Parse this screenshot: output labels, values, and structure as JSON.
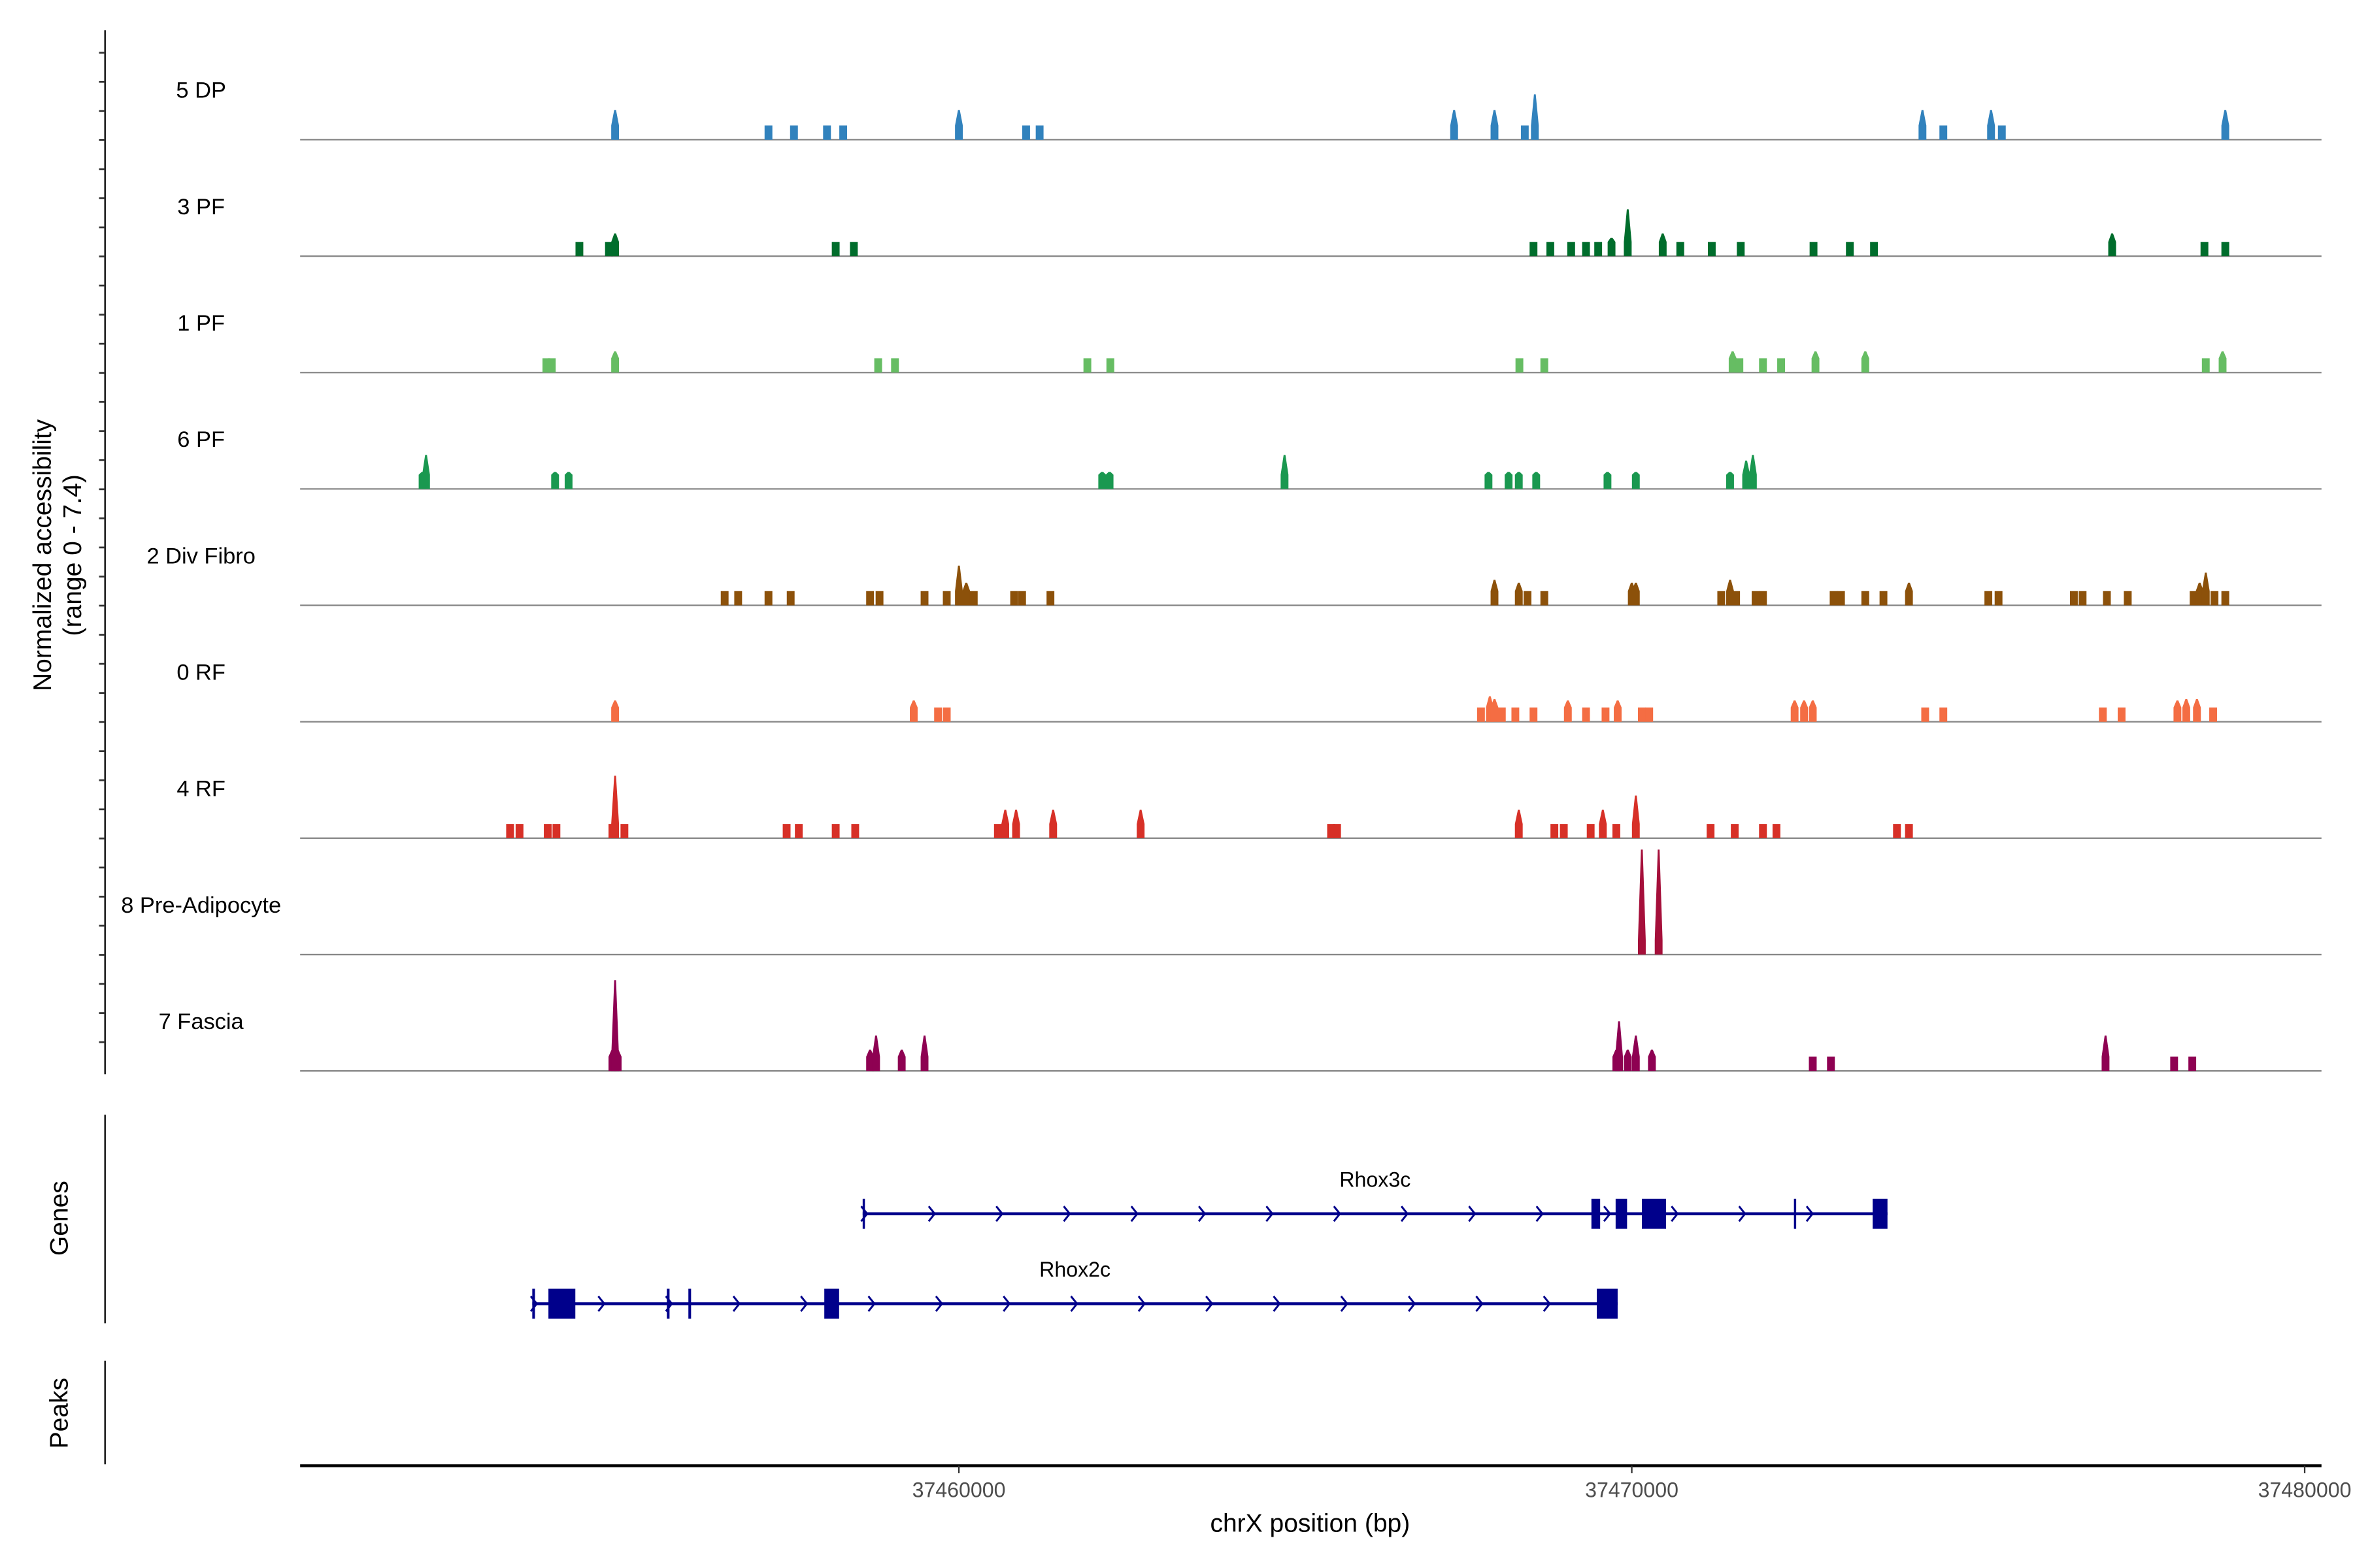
{
  "chart_data": {
    "type": "area",
    "title": "",
    "xlabel": "chrX position (bp)",
    "ylabel": "Normalized accessibility",
    "ylabel_sub": "(range 0 - 7.4)",
    "ylim": [
      0,
      7.4
    ],
    "xlim": [
      37450210,
      37480250
    ],
    "xticks": [
      37460000,
      37470000,
      37480000
    ],
    "xtick_labels": [
      "37460000",
      "37470000",
      "37480000"
    ],
    "grid": false,
    "tracks": [
      {
        "name": "5 DP",
        "color": "#3182bd",
        "peaks": [
          [
            37454890,
            2.1
          ],
          [
            37457170,
            1.0
          ],
          [
            37457550,
            1.0
          ],
          [
            37458040,
            1.0
          ],
          [
            37458280,
            1.0
          ],
          [
            37460000,
            2.1
          ],
          [
            37461000,
            1.0
          ],
          [
            37461200,
            1.0
          ],
          [
            37467360,
            2.1
          ],
          [
            37467960,
            2.1
          ],
          [
            37468410,
            1.0
          ],
          [
            37468560,
            3.2
          ],
          [
            37474320,
            2.1
          ],
          [
            37474630,
            1.0
          ],
          [
            37475340,
            2.1
          ],
          [
            37475500,
            1.0
          ],
          [
            37478820,
            2.1
          ]
        ]
      },
      {
        "name": "3 PF",
        "color": "#006d2c",
        "peaks": [
          [
            37454360,
            1.0
          ],
          [
            37454800,
            1.0
          ],
          [
            37454890,
            1.6
          ],
          [
            37458170,
            1.0
          ],
          [
            37458440,
            1.0
          ],
          [
            37468540,
            1.0
          ],
          [
            37468790,
            1.0
          ],
          [
            37469100,
            1.0
          ],
          [
            37469320,
            1.0
          ],
          [
            37469500,
            1.0
          ],
          [
            37469700,
            1.3
          ],
          [
            37469940,
            3.3
          ],
          [
            37470460,
            1.6
          ],
          [
            37470720,
            1.0
          ],
          [
            37471190,
            1.0
          ],
          [
            37471620,
            1.0
          ],
          [
            37472700,
            1.0
          ],
          [
            37473240,
            1.0
          ],
          [
            37473600,
            1.0
          ],
          [
            37477140,
            1.6
          ],
          [
            37478510,
            1.0
          ],
          [
            37478820,
            1.0
          ]
        ]
      },
      {
        "name": "1 PF",
        "color": "#66bd63",
        "peaks": [
          [
            37453870,
            1.0
          ],
          [
            37453950,
            1.0
          ],
          [
            37454890,
            1.5
          ],
          [
            37458800,
            1.0
          ],
          [
            37459050,
            1.0
          ],
          [
            37461910,
            1.0
          ],
          [
            37462250,
            1.0
          ],
          [
            37468330,
            1.0
          ],
          [
            37468700,
            1.0
          ],
          [
            37471500,
            1.5
          ],
          [
            37471600,
            1.0
          ],
          [
            37471950,
            1.0
          ],
          [
            37472220,
            1.0
          ],
          [
            37472730,
            1.5
          ],
          [
            37473470,
            1.5
          ],
          [
            37478530,
            1.0
          ],
          [
            37478780,
            1.5
          ]
        ]
      },
      {
        "name": "6 PF",
        "color": "#1a9850",
        "peaks": [
          [
            37452030,
            1.2
          ],
          [
            37452080,
            2.4
          ],
          [
            37454000,
            1.2
          ],
          [
            37454200,
            1.2
          ],
          [
            37462130,
            1.2
          ],
          [
            37462240,
            1.2
          ],
          [
            37464840,
            2.4
          ],
          [
            37467870,
            1.2
          ],
          [
            37468170,
            1.2
          ],
          [
            37468320,
            1.2
          ],
          [
            37468580,
            1.2
          ],
          [
            37469640,
            1.2
          ],
          [
            37470060,
            1.2
          ],
          [
            37471460,
            1.2
          ],
          [
            37471700,
            2.0
          ],
          [
            37471800,
            2.4
          ]
        ]
      },
      {
        "name": "2 Div Fibro",
        "color": "#8c510a",
        "peaks": [
          [
            37456520,
            1.0
          ],
          [
            37456720,
            1.0
          ],
          [
            37457170,
            1.0
          ],
          [
            37457500,
            1.0
          ],
          [
            37458680,
            1.0
          ],
          [
            37458820,
            1.0
          ],
          [
            37459490,
            1.0
          ],
          [
            37459820,
            1.0
          ],
          [
            37460000,
            2.8
          ],
          [
            37460110,
            1.6
          ],
          [
            37460220,
            1.0
          ],
          [
            37460820,
            1.0
          ],
          [
            37460940,
            1.0
          ],
          [
            37461360,
            1.0
          ],
          [
            37467960,
            1.8
          ],
          [
            37468320,
            1.6
          ],
          [
            37468450,
            1.0
          ],
          [
            37468700,
            1.0
          ],
          [
            37470000,
            1.6
          ],
          [
            37470060,
            1.6
          ],
          [
            37471330,
            1.0
          ],
          [
            37471460,
            1.8
          ],
          [
            37471550,
            1.0
          ],
          [
            37471840,
            1.0
          ],
          [
            37471950,
            1.0
          ],
          [
            37473000,
            1.0
          ],
          [
            37473110,
            1.0
          ],
          [
            37473470,
            1.0
          ],
          [
            37473740,
            1.0
          ],
          [
            37474120,
            1.6
          ],
          [
            37475300,
            1.0
          ],
          [
            37475450,
            1.0
          ],
          [
            37476570,
            1.0
          ],
          [
            37476700,
            1.0
          ],
          [
            37477060,
            1.0
          ],
          [
            37477370,
            1.0
          ],
          [
            37478350,
            1.0
          ],
          [
            37478440,
            1.6
          ],
          [
            37478530,
            2.3
          ],
          [
            37478660,
            1.0
          ],
          [
            37478820,
            1.0
          ]
        ]
      },
      {
        "name": "0 RF",
        "color": "#f46d43",
        "peaks": [
          [
            37454890,
            1.5
          ],
          [
            37459330,
            1.5
          ],
          [
            37459690,
            1.0
          ],
          [
            37459820,
            1.0
          ],
          [
            37467760,
            1.0
          ],
          [
            37467890,
            1.8
          ],
          [
            37467960,
            1.6
          ],
          [
            37468070,
            1.0
          ],
          [
            37468270,
            1.0
          ],
          [
            37468540,
            1.0
          ],
          [
            37469050,
            1.5
          ],
          [
            37469320,
            1.0
          ],
          [
            37469610,
            1.0
          ],
          [
            37469790,
            1.5
          ],
          [
            37470150,
            1.0
          ],
          [
            37470260,
            1.0
          ],
          [
            37472420,
            1.5
          ],
          [
            37472560,
            1.5
          ],
          [
            37472690,
            1.5
          ],
          [
            37474360,
            1.0
          ],
          [
            37474630,
            1.0
          ],
          [
            37477000,
            1.0
          ],
          [
            37477280,
            1.0
          ],
          [
            37478110,
            1.5
          ],
          [
            37478240,
            1.6
          ],
          [
            37478400,
            1.6
          ],
          [
            37478640,
            1.0
          ]
        ]
      },
      {
        "name": "4 RF",
        "color": "#d73027",
        "peaks": [
          [
            37453330,
            1.0
          ],
          [
            37453470,
            1.0
          ],
          [
            37453890,
            1.0
          ],
          [
            37454020,
            1.0
          ],
          [
            37454850,
            1.0
          ],
          [
            37454890,
            4.4
          ],
          [
            37455030,
            1.0
          ],
          [
            37457440,
            1.0
          ],
          [
            37457620,
            1.0
          ],
          [
            37458170,
            1.0
          ],
          [
            37458460,
            1.0
          ],
          [
            37460580,
            1.0
          ],
          [
            37460690,
            2.0
          ],
          [
            37460850,
            2.0
          ],
          [
            37461400,
            2.0
          ],
          [
            37462700,
            2.0
          ],
          [
            37465530,
            1.0
          ],
          [
            37465620,
            1.0
          ],
          [
            37468320,
            2.0
          ],
          [
            37468850,
            1.0
          ],
          [
            37468990,
            1.0
          ],
          [
            37469390,
            1.0
          ],
          [
            37469570,
            2.0
          ],
          [
            37469770,
            1.0
          ],
          [
            37470060,
            3.0
          ],
          [
            37471170,
            1.0
          ],
          [
            37471530,
            1.0
          ],
          [
            37471950,
            1.0
          ],
          [
            37472150,
            1.0
          ],
          [
            37473940,
            1.0
          ],
          [
            37474120,
            1.0
          ]
        ]
      },
      {
        "name": "8 Pre-Adipocyte",
        "color": "#a50f3a",
        "peaks": [
          [
            37470150,
            7.4
          ],
          [
            37470400,
            7.4
          ]
        ]
      },
      {
        "name": "7 Fascia",
        "color": "#8e0152",
        "peaks": [
          [
            37454850,
            1.5
          ],
          [
            37454890,
            6.4
          ],
          [
            37454930,
            1.5
          ],
          [
            37458680,
            1.5
          ],
          [
            37458770,
            2.5
          ],
          [
            37459150,
            1.5
          ],
          [
            37459490,
            2.5
          ],
          [
            37469770,
            1.5
          ],
          [
            37469810,
            3.5
          ],
          [
            37469940,
            1.5
          ],
          [
            37470060,
            2.5
          ],
          [
            37470300,
            1.5
          ],
          [
            37472690,
            1.0
          ],
          [
            37472960,
            1.0
          ],
          [
            37477040,
            2.5
          ],
          [
            37478060,
            1.0
          ],
          [
            37478330,
            1.0
          ]
        ]
      }
    ],
    "genes_label": "Genes",
    "peaks_label": "Peaks",
    "genes": [
      {
        "name": "Rhox3c",
        "strand": "+",
        "start": 37458570,
        "end": 37473800,
        "exons": [
          [
            37458570,
            37458600
          ],
          [
            37469400,
            37469530
          ],
          [
            37469760,
            37469930
          ],
          [
            37470150,
            37470510
          ],
          [
            37472410,
            37472440
          ],
          [
            37473580,
            37473800
          ]
        ]
      },
      {
        "name": "Rhox2c",
        "strand": "+",
        "start": 37453660,
        "end": 37469790,
        "exons": [
          [
            37453660,
            37453700
          ],
          [
            37453900,
            37454300
          ],
          [
            37455660,
            37455700
          ],
          [
            37455980,
            37456020
          ],
          [
            37458000,
            37458220
          ],
          [
            37469480,
            37469790
          ]
        ]
      }
    ],
    "gene_color": "#00008b"
  }
}
